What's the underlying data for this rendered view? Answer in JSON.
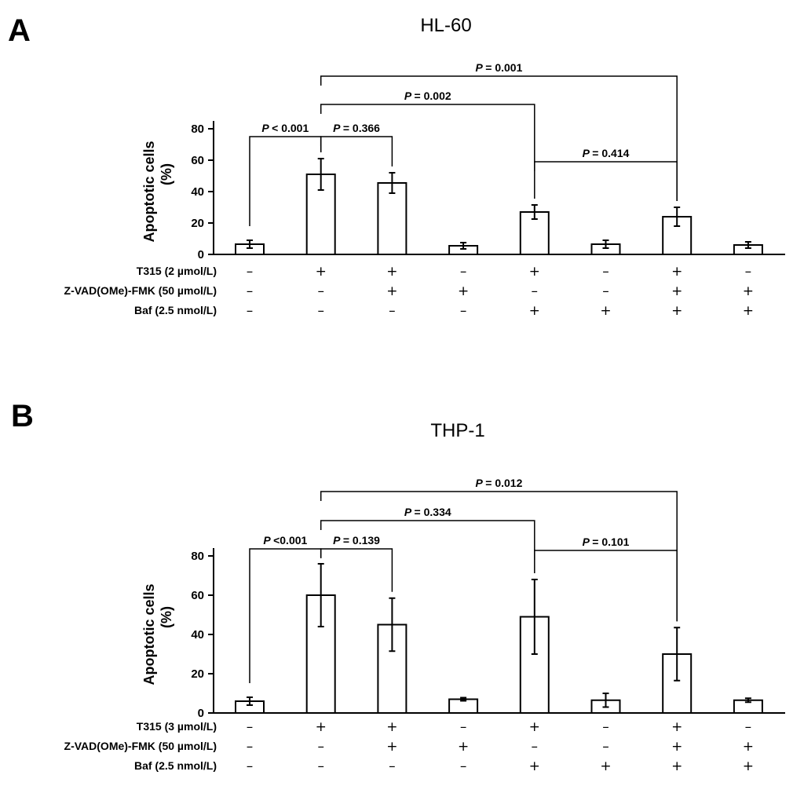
{
  "chart_data": [
    {
      "type": "bar",
      "panel": "A",
      "title": "HL-60",
      "ylabel_line1": "Apoptotic cells",
      "ylabel_line2": "(%)",
      "ylim": [
        0,
        80
      ],
      "yticks": [
        0,
        20,
        40,
        60,
        80
      ],
      "grid": false,
      "values": [
        6.5,
        51,
        45.5,
        5.5,
        27,
        6.5,
        24,
        6
      ],
      "errors": [
        2.5,
        10,
        6.5,
        2,
        4.5,
        2.5,
        6,
        2
      ],
      "conditions": [
        {
          "label": "T315 (2 µmol/L)",
          "signs": [
            "–",
            "+",
            "+",
            "–",
            "+",
            "–",
            "+",
            "–"
          ]
        },
        {
          "label": "Z-VAD(OMe)-FMK (50 µmol/L)",
          "signs": [
            "–",
            "–",
            "+",
            "+",
            "–",
            "–",
            "+",
            "+"
          ]
        },
        {
          "label": "Baf (2.5 nmol/L)",
          "signs": [
            "–",
            "–",
            "–",
            "–",
            "+",
            "+",
            "+",
            "+"
          ]
        }
      ],
      "comparisons": [
        {
          "from": 0,
          "to": 1,
          "p_symbol": "P",
          "p_value": "< 0.001"
        },
        {
          "from": 1,
          "to": 2,
          "p_symbol": "P",
          "p_value": "= 0.366"
        },
        {
          "from": 1,
          "to": 4,
          "p_symbol": "P",
          "p_value": "= 0.002"
        },
        {
          "from": 1,
          "to": 6,
          "p_symbol": "P",
          "p_value": "= 0.001"
        },
        {
          "from": 4,
          "to": 6,
          "p_symbol": "P",
          "p_value": "= 0.414"
        }
      ]
    },
    {
      "type": "bar",
      "panel": "B",
      "title": "THP-1",
      "ylabel_line1": "Apoptotic cells",
      "ylabel_line2": "(%)",
      "ylim": [
        0,
        80
      ],
      "yticks": [
        0,
        20,
        40,
        60,
        80
      ],
      "grid": false,
      "values": [
        6,
        60,
        45,
        7,
        49,
        6.5,
        30,
        6.5
      ],
      "errors": [
        2,
        16,
        13.5,
        0.8,
        19,
        3.5,
        13.5,
        1
      ],
      "conditions": [
        {
          "label": "T315 (3 µmol/L)",
          "signs": [
            "–",
            "+",
            "+",
            "–",
            "+",
            "–",
            "+",
            "–"
          ]
        },
        {
          "label": "Z-VAD(OMe)-FMK (50 µmol/L)",
          "signs": [
            "–",
            "–",
            "+",
            "+",
            "–",
            "–",
            "+",
            "+"
          ]
        },
        {
          "label": "Baf (2.5 nmol/L)",
          "signs": [
            "–",
            "–",
            "–",
            "–",
            "+",
            "+",
            "+",
            "+"
          ]
        }
      ],
      "comparisons": [
        {
          "from": 0,
          "to": 1,
          "p_symbol": "P",
          "p_value": "<0.001"
        },
        {
          "from": 1,
          "to": 2,
          "p_symbol": "P",
          "p_value": "= 0.139"
        },
        {
          "from": 1,
          "to": 4,
          "p_symbol": "P",
          "p_value": "= 0.334"
        },
        {
          "from": 1,
          "to": 6,
          "p_symbol": "P",
          "p_value": "= 0.012"
        },
        {
          "from": 4,
          "to": 6,
          "p_symbol": "P",
          "p_value": "= 0.101"
        }
      ]
    }
  ]
}
